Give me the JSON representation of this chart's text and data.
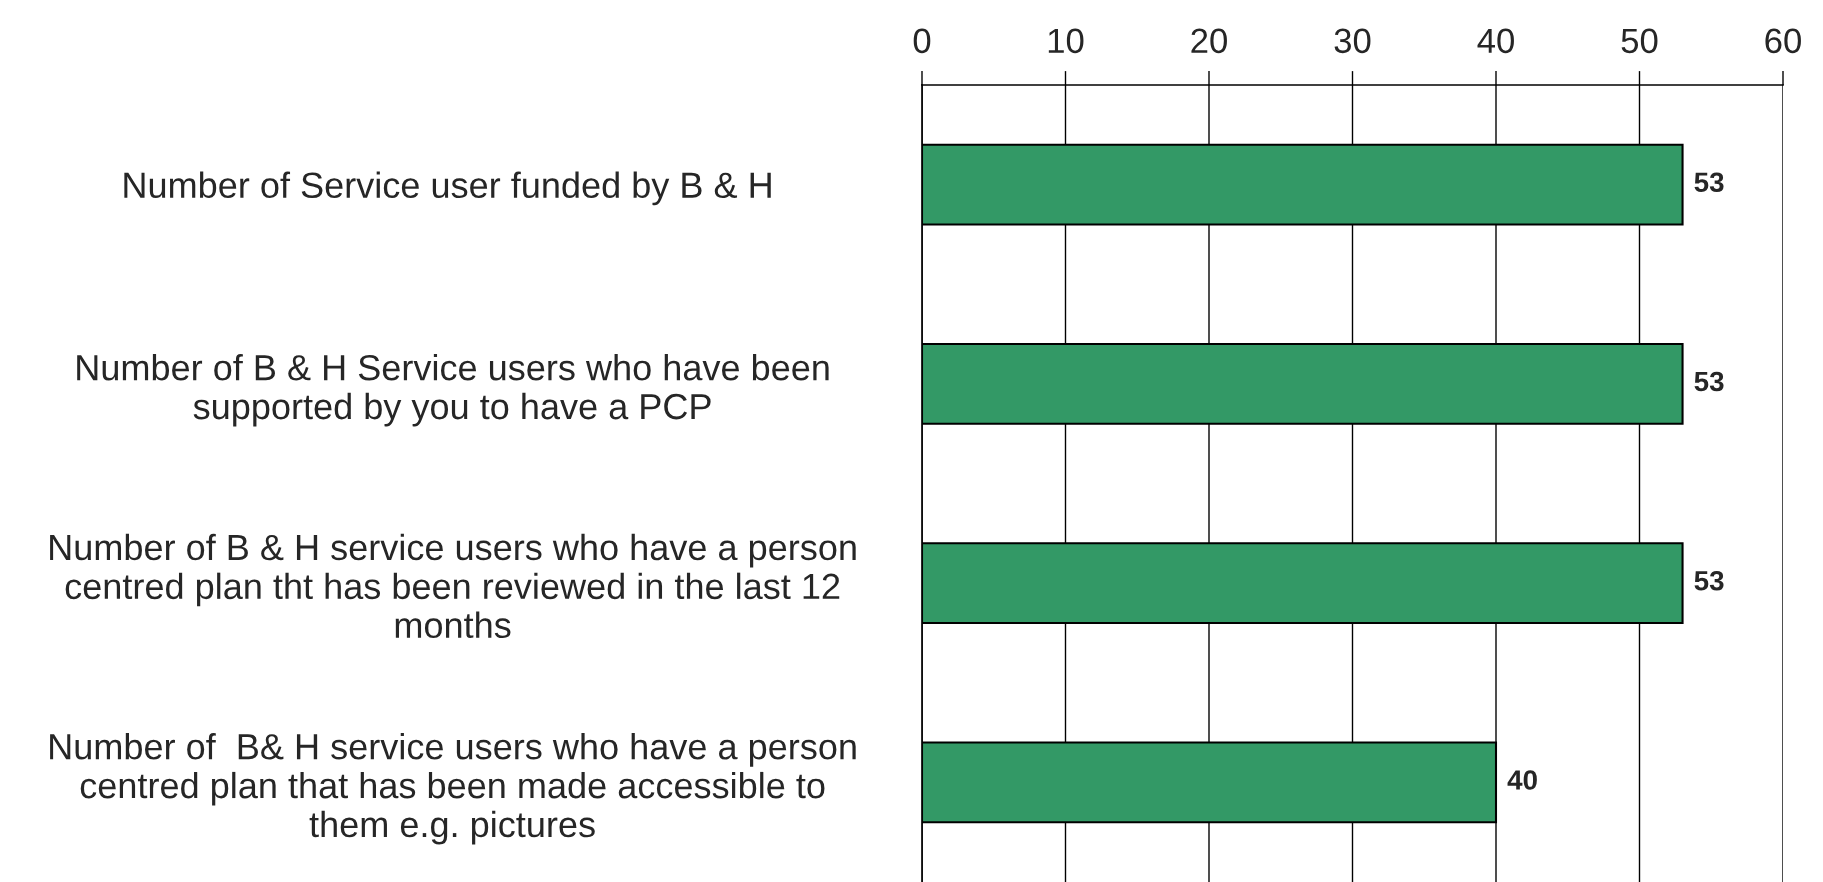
{
  "chart_data": {
    "type": "bar",
    "orientation": "horizontal",
    "categories": [
      "Number of Service user funded by B & H ",
      "Number of B & H Service users who have been\nsupported by you to have a PCP",
      "Number of B & H service users who have a person\ncentred plan tht has been reviewed in the last 12\nmonths",
      "Number of  B& H service users who have a person\ncentred plan that has been made accessible to\nthem e.g. pictures"
    ],
    "values": [
      53,
      53,
      53,
      40
    ],
    "color": "#339966",
    "xlim": [
      0,
      60
    ],
    "xticks": [
      0,
      10,
      20,
      30,
      40,
      50,
      60
    ],
    "grid": "x",
    "data_labels": true
  }
}
